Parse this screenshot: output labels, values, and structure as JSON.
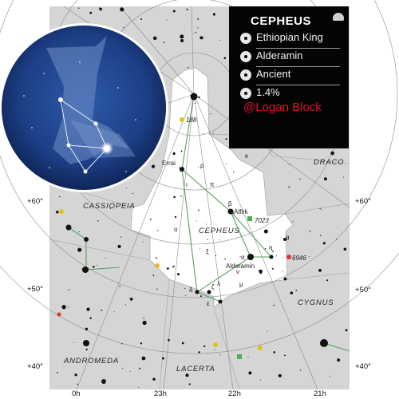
{
  "infobox": {
    "title": "CEPHEUS",
    "rows": [
      "Ethiopian King",
      "Alderamin",
      "Ancient",
      "1.4%"
    ],
    "credit": "@Logan Block",
    "credit_color": "#e0102a"
  },
  "map": {
    "constellations": {
      "cepheus": "CEPHEUS",
      "cassiopeia": "CASSIOPEIA",
      "draco": "DRACO",
      "cygnus": "CYGNUS",
      "andromeda": "ANDROMEDA",
      "lacerta": "LACERTA"
    },
    "stars": {
      "errai": "Errai",
      "alfirk": "Alfirk",
      "alderamin": "Alderamin",
      "gamma": "γ",
      "rho": "ρ",
      "iota": "ι",
      "beta": "β",
      "eta": "η",
      "theta": "θ",
      "alpha": "α",
      "xi": "ξ",
      "nu": "ν",
      "delta": "δ",
      "lambda": "λ",
      "zeta": "ζ",
      "epsilon": "ε",
      "mu": "μ",
      "omicron": "ο",
      "pi": "π",
      "kappa": "κ",
      "ngc7023": "7023",
      "ngc6946": "6946",
      "ngc188": "188"
    },
    "declinations": [
      "+60°",
      "+50°",
      "+40°"
    ],
    "right_ascensions": [
      "0h",
      "23h",
      "22h",
      "21h"
    ]
  }
}
